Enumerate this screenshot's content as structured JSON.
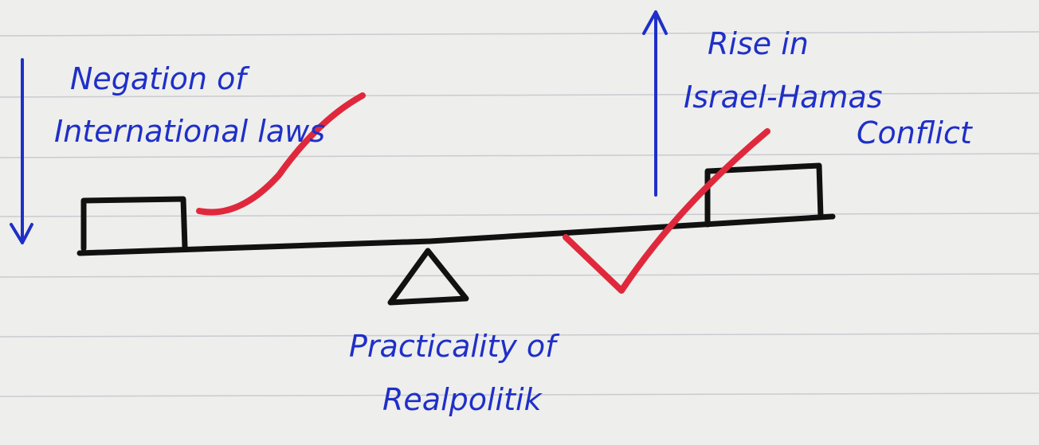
{
  "left_label": {
    "lines": [
      "Negation of",
      "International laws"
    ]
  },
  "right_label": {
    "lines": [
      "Rise in",
      "Israel-Hamas",
      "Conflict"
    ]
  },
  "fulcrum_label": {
    "lines": [
      "Practicality of",
      "Realpolitik"
    ]
  }
}
